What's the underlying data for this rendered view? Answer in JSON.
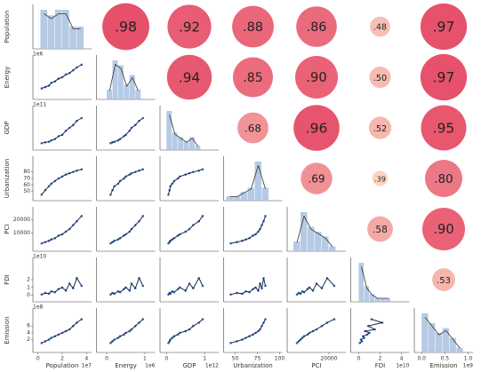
{
  "chart_data": {
    "type": "pairplot",
    "variables": [
      {
        "name": "Population",
        "lim": [
          -0.2,
          4.2
        ],
        "xticks": [
          0,
          2,
          4
        ],
        "yticks": [],
        "x_offset": "1e7",
        "observations": [
          0.3,
          0.6,
          0.9,
          1.1,
          1.4,
          1.7,
          2.0,
          2.3,
          2.6,
          2.9,
          3.2,
          3.6
        ],
        "bins": [
          0.2,
          0.8,
          1.4,
          2.0,
          2.6,
          3.2,
          3.8
        ],
        "counts": [
          7,
          6,
          7,
          7,
          4,
          4
        ]
      },
      {
        "name": "Energy",
        "lim": [
          -0.2,
          1.2
        ],
        "xticks": [
          0,
          1
        ],
        "yticks": [],
        "x_offset": "1e6",
        "y_offset": "1e6",
        "observations": [
          0.1,
          0.15,
          0.2,
          0.3,
          0.35,
          0.45,
          0.5,
          0.6,
          0.65,
          0.75,
          0.85,
          0.95
        ],
        "bins": [
          0,
          0.15,
          0.3,
          0.45,
          0.6,
          0.75,
          0.9
        ],
        "counts": [
          2,
          8,
          7,
          3,
          5,
          2
        ]
      },
      {
        "name": "GDP",
        "lim": [
          -0.1,
          1.3
        ],
        "xticks": [
          0,
          1
        ],
        "yticks": [],
        "x_offset": "1e12",
        "y_offset": "1e11",
        "observations": [
          0.05,
          0.08,
          0.1,
          0.15,
          0.2,
          0.3,
          0.35,
          0.5,
          0.6,
          0.7,
          0.85,
          0.95
        ],
        "bins": [
          0,
          0.15,
          0.3,
          0.45,
          0.6,
          0.75,
          0.9
        ],
        "counts": [
          9,
          4,
          3,
          2,
          3,
          1
        ]
      },
      {
        "name": "Urbanization",
        "lim": [
          40,
          100
        ],
        "xticks": [
          50,
          75,
          100
        ],
        "yticks": [
          50,
          60,
          70,
          80
        ],
        "observations": [
          45,
          52,
          58,
          62,
          66,
          70,
          73,
          76,
          78,
          80,
          82,
          84
        ],
        "bins": [
          40,
          48,
          56,
          64,
          72,
          80,
          88
        ],
        "counts": [
          1,
          1,
          2,
          3,
          9,
          3
        ]
      },
      {
        "name": "PCI",
        "lim": [
          -2000,
          28000
        ],
        "xticks": [
          20000
        ],
        "yticks": [
          10000,
          20000
        ],
        "observations": [
          2000,
          3000,
          4000,
          5000,
          6000,
          8000,
          9000,
          11000,
          13000,
          16000,
          19000,
          23000
        ],
        "bins": [
          0,
          4000,
          8000,
          12000,
          16000,
          20000,
          24000
        ],
        "counts": [
          2,
          8,
          5,
          4,
          3,
          1
        ]
      },
      {
        "name": "FDI",
        "lim": [
          -0.5,
          4.5
        ],
        "xticks": [
          0,
          2,
          4
        ],
        "yticks": [
          0,
          1,
          2
        ],
        "x_offset": "1e10",
        "y_offset": "1e10",
        "observations": [
          0.1,
          0.3,
          0.2,
          0.5,
          0.4,
          0.8,
          1.0,
          0.6,
          1.5,
          0.9,
          2.2,
          1.2
        ],
        "bins": [
          0,
          0.5,
          1,
          1.5,
          2,
          2.5,
          3
        ],
        "counts": [
          10,
          4,
          2,
          1,
          1,
          1
        ]
      },
      {
        "name": "Emission",
        "lim": [
          -0.1,
          1.05
        ],
        "xticks": [
          {
            "value": 0.0,
            "label": "0.0"
          },
          {
            "value": 0.5,
            "label": "0.5"
          },
          {
            "value": 1.0,
            "label": "1.0"
          }
        ],
        "yticks": [
          0.2,
          0.4,
          0.6
        ],
        "ytick_labels": [
          "2",
          "4",
          "6"
        ],
        "x_offset": "1e9",
        "y_offset": "1e8",
        "observations": [
          0.1,
          0.15,
          0.2,
          0.25,
          0.3,
          0.35,
          0.4,
          0.45,
          0.5,
          0.6,
          0.7,
          0.8
        ],
        "bins": [
          0,
          0.15,
          0.3,
          0.45,
          0.6,
          0.75,
          0.9
        ],
        "counts": [
          8,
          6,
          4,
          5,
          3,
          1
        ]
      }
    ],
    "correlations": [
      [
        null,
        0.98,
        0.92,
        0.88,
        0.86,
        0.48,
        0.97
      ],
      [
        null,
        null,
        0.94,
        0.85,
        0.9,
        0.5,
        0.97
      ],
      [
        null,
        null,
        null,
        0.68,
        0.96,
        0.52,
        0.95
      ],
      [
        null,
        null,
        null,
        null,
        0.69,
        0.39,
        0.8
      ],
      [
        null,
        null,
        null,
        null,
        null,
        0.58,
        0.9
      ],
      [
        null,
        null,
        null,
        null,
        null,
        null,
        0.53
      ],
      [
        null,
        null,
        null,
        null,
        null,
        null,
        null
      ]
    ],
    "correlation_labels": [
      [
        null,
        ".98",
        ".92",
        ".88",
        ".86",
        ".48",
        ".97"
      ],
      [
        null,
        null,
        ".94",
        ".85",
        ".90",
        ".50",
        ".97"
      ],
      [
        null,
        null,
        null,
        ".68",
        ".96",
        ".52",
        ".95"
      ],
      [
        null,
        null,
        null,
        null,
        ".69",
        ".39",
        ".80"
      ],
      [
        null,
        null,
        null,
        null,
        null,
        ".58",
        ".90"
      ],
      [
        null,
        null,
        null,
        null,
        null,
        null,
        ".53"
      ],
      [
        null,
        null,
        null,
        null,
        null,
        null,
        null
      ]
    ],
    "point_color": "#3f72b8",
    "line_color": "#1c2b4a",
    "hist_color": "#a9c1e0",
    "color_low": "#fbd4c2",
    "color_high": "#e6506a"
  }
}
